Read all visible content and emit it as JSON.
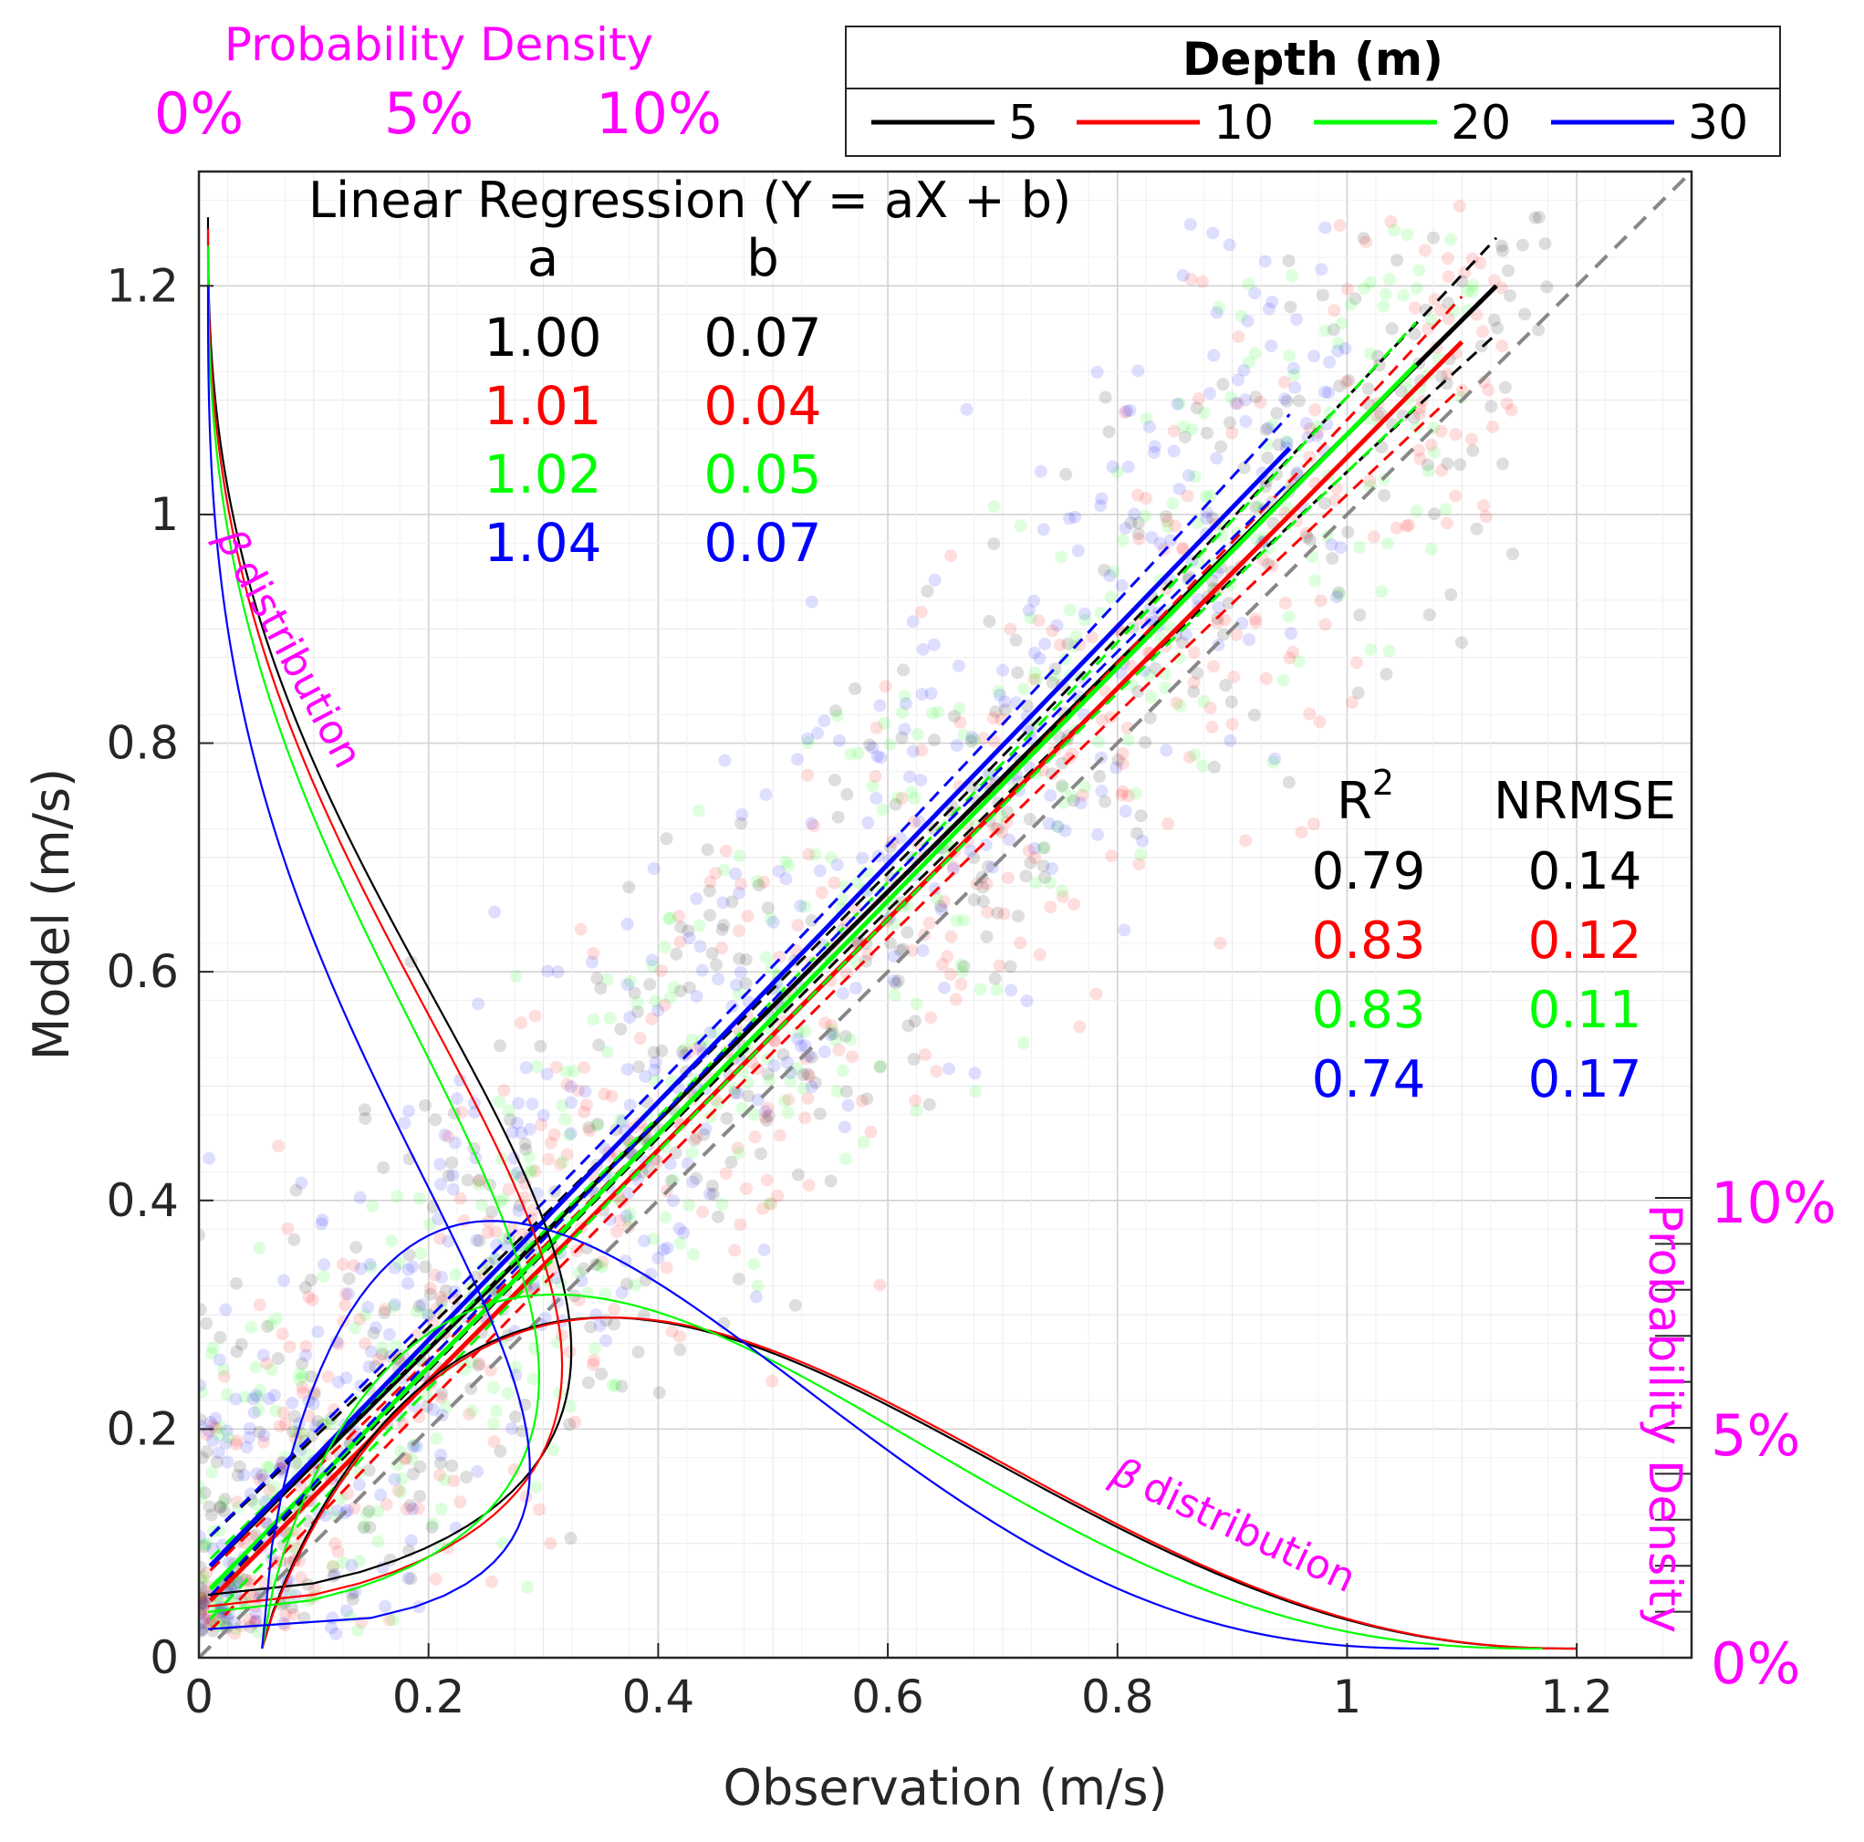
{
  "chart_data": {
    "type": "scatter",
    "xlabel": "Observation (m/s)",
    "ylabel": "Model (m/s)",
    "xlim": [
      0,
      1.3
    ],
    "ylim": [
      0,
      1.3
    ],
    "x_ticks": [
      0,
      0.2,
      0.4,
      0.6,
      0.8,
      1,
      1.2
    ],
    "x_tick_labels": [
      "0",
      "0.2",
      "0.4",
      "0.6",
      "0.8",
      "1",
      "1.2"
    ],
    "y_ticks": [
      0,
      0.2,
      0.4,
      0.6,
      0.8,
      1,
      1.2
    ],
    "y_tick_labels": [
      "0",
      "0.2",
      "0.4",
      "0.6",
      "0.8",
      "1",
      "1.2"
    ],
    "grid": true,
    "legend": {
      "title": "Depth (m)",
      "position": "top-right",
      "entries": [
        {
          "label": "5",
          "color": "#000000"
        },
        {
          "label": "10",
          "color": "#ff0000"
        },
        {
          "label": "20",
          "color": "#00ff00"
        },
        {
          "label": "30",
          "color": "#0000ff"
        }
      ]
    },
    "one_to_one_line": {
      "style": "dashed",
      "color": "#888888"
    },
    "regression": {
      "title": "Linear Regression (Y = aX + b)",
      "a_header": "a",
      "b_header": "b",
      "rows": [
        {
          "depth": "5",
          "a": "1.00",
          "b": "0.07",
          "x_range": [
            0.01,
            1.13
          ],
          "color": "#000000"
        },
        {
          "depth": "10",
          "a": "1.01",
          "b": "0.04",
          "x_range": [
            0.01,
            1.1
          ],
          "color": "#ff0000"
        },
        {
          "depth": "20",
          "a": "1.02",
          "b": "0.05",
          "x_range": [
            0.01,
            1.06
          ],
          "color": "#00ff00"
        },
        {
          "depth": "30",
          "a": "1.04",
          "b": "0.07",
          "x_range": [
            0.01,
            0.95
          ],
          "color": "#0000ff"
        }
      ]
    },
    "stats": {
      "r2_header": "R",
      "r2_sup": "2",
      "nrmse_header": "NRMSE",
      "rows": [
        {
          "depth": "5",
          "r2": "0.79",
          "nrmse": "0.14",
          "color": "#000000"
        },
        {
          "depth": "10",
          "r2": "0.83",
          "nrmse": "0.12",
          "color": "#ff0000"
        },
        {
          "depth": "20",
          "r2": "0.83",
          "nrmse": "0.11",
          "color": "#00ff00"
        },
        {
          "depth": "30",
          "r2": "0.74",
          "nrmse": "0.17",
          "color": "#0000ff"
        }
      ]
    },
    "density_axis": {
      "label": "Probability Density",
      "tick_labels": [
        "0%",
        "5%",
        "10%"
      ],
      "tick_values": [
        0,
        5,
        10
      ],
      "color": "#ff00ff",
      "annotation": "distribution",
      "annotation_symbol": "β"
    },
    "beta_distributions": [
      {
        "depth": "5",
        "color": "#000000",
        "x_range": [
          0.055,
          1.2
        ],
        "mode": 0.355,
        "peak_pct": 7.2,
        "y_range": [
          0.055,
          1.26
        ],
        "y_mode": 0.268,
        "y_peak_pct": 7.9
      },
      {
        "depth": "10",
        "color": "#ff0000",
        "x_range": [
          0.055,
          1.2
        ],
        "mode": 0.36,
        "peak_pct": 7.2,
        "y_range": [
          0.045,
          1.25
        ],
        "y_mode": 0.255,
        "y_peak_pct": 7.7
      },
      {
        "depth": "20",
        "color": "#00ff00",
        "x_range": [
          0.055,
          1.17
        ],
        "mode": 0.31,
        "peak_pct": 7.7,
        "y_range": [
          0.04,
          1.235
        ],
        "y_mode": 0.245,
        "y_peak_pct": 7.2
      },
      {
        "depth": "30",
        "color": "#0000ff",
        "x_range": [
          0.055,
          1.08
        ],
        "mode": 0.255,
        "peak_pct": 9.3,
        "y_range": [
          0.025,
          1.2
        ],
        "y_mode": 0.165,
        "y_peak_pct": 7.0
      }
    ],
    "scatter": {
      "description_counts": {
        "per_series": 500
      },
      "alpha": 0.13
    }
  }
}
